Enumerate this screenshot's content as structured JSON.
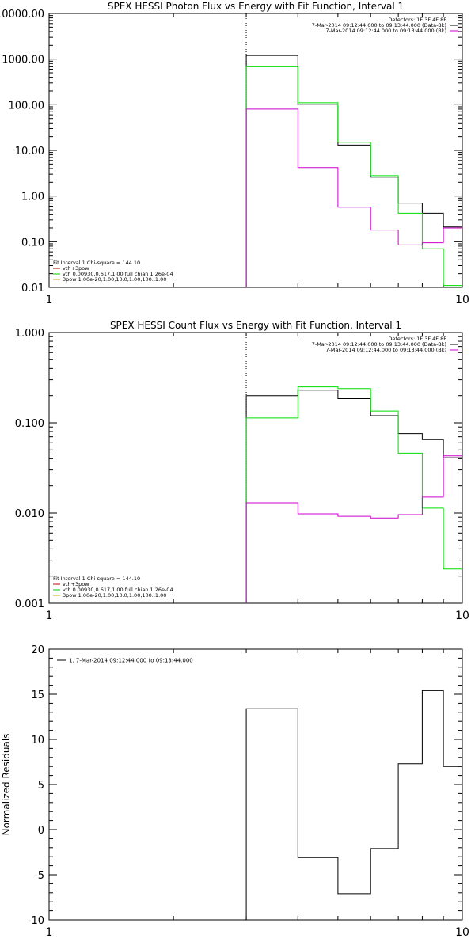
{
  "chart_data": [
    {
      "type": "line",
      "title": "SPEX HESSI Photon Flux vs Energy with Fit Function, Interval 1",
      "xlabel": "",
      "ylabel": "",
      "xscale": "log",
      "yscale": "log",
      "xlim": [
        1,
        10
      ],
      "ylim": [
        0.01,
        10000
      ],
      "x_ticks": [
        "1",
        "10"
      ],
      "y_ticks": [
        "0.01",
        "0.10",
        "1.00",
        "10.00",
        "100.00",
        "1000.00",
        "10000.00"
      ],
      "y_tick_values": [
        0.01,
        0.1,
        1,
        10,
        100,
        1000,
        10000
      ],
      "energy_edges": [
        3,
        4,
        5,
        6,
        7,
        8,
        9,
        10
      ],
      "vline_x": 3,
      "legend_top": [
        "Detectors: 1F 3F 4F 8F",
        "7-Mar-2014 09:12:44.000 to 09:13:44.000 (Data-Bk)",
        "7-Mar-2014 09:12:44.000 to 09:13:44.000 (Bk)"
      ],
      "legend_top_colors": [
        "",
        "#000000",
        "#cc00cc"
      ],
      "legend_bottom": [
        "Fit Interval 1    Chi-square = 144.10",
        "vth+3pow",
        "vth 0.00930,0.617,1.00   full chian 1.26e-04",
        "3pow 1.00e-20,1.00,10.0,1.00,100.,1.00"
      ],
      "legend_bottom_colors": [
        "",
        "#cc0000",
        "#00cc00",
        "#ccaa00"
      ],
      "series": [
        {
          "color": "#000000",
          "values": [
            1200,
            100,
            13,
            2.6,
            0.7,
            0.42,
            0.21
          ]
        },
        {
          "color": "#00dd00",
          "values": [
            700,
            110,
            15,
            2.8,
            0.42,
            0.07,
            0.011
          ]
        },
        {
          "color": "#cc00cc",
          "values": [
            80,
            4.2,
            0.57,
            0.18,
            0.085,
            0.095,
            0.2
          ]
        }
      ]
    },
    {
      "type": "line",
      "title": "SPEX HESSI Count Flux vs Energy with Fit Function, Interval 1",
      "xlabel": "",
      "ylabel": "",
      "xscale": "log",
      "yscale": "log",
      "xlim": [
        1,
        10
      ],
      "ylim": [
        0.001,
        1
      ],
      "x_ticks": [
        "1",
        "10"
      ],
      "y_ticks": [
        "0.001",
        "0.010",
        "0.100",
        "1.000"
      ],
      "y_tick_values": [
        0.001,
        0.01,
        0.1,
        1
      ],
      "energy_edges": [
        3,
        4,
        5,
        6,
        7,
        8,
        9,
        10
      ],
      "vline_x": 3,
      "legend_top": [
        "Detectors: 1F 3F 4F 8F",
        "7-Mar-2014 09:12:44.000 to 09:13:44.000 (Data-Bk)",
        "7-Mar-2014 09:12:44.000 to 09:13:44.000 (Bk)"
      ],
      "legend_top_colors": [
        "",
        "#000000",
        "#cc00cc"
      ],
      "legend_bottom": [
        "Fit Interval 1    Chi-square = 144.10",
        "vth+3pow",
        "vth 0.00930,0.617,1.00   full chian 1.26e-04",
        "3pow 1.00e-20,1.00,10.0,1.00,100.,1.00"
      ],
      "legend_bottom_colors": [
        "",
        "#cc0000",
        "#00cc00",
        "#ccaa00"
      ],
      "series": [
        {
          "color": "#000000",
          "values": [
            0.2,
            0.23,
            0.185,
            0.12,
            0.076,
            0.065,
            0.041
          ]
        },
        {
          "color": "#00dd00",
          "values": [
            0.113,
            0.25,
            0.24,
            0.135,
            0.046,
            0.0113,
            0.0024
          ]
        },
        {
          "color": "#cc00cc",
          "values": [
            0.013,
            0.0098,
            0.0092,
            0.0088,
            0.0096,
            0.015,
            0.043
          ]
        }
      ]
    },
    {
      "type": "line",
      "title": "",
      "xlabel": "",
      "ylabel": "Normalized Residuals",
      "xscale": "log",
      "yscale": "linear",
      "xlim": [
        1,
        10
      ],
      "ylim": [
        -10,
        20
      ],
      "x_ticks": [
        "1",
        "10"
      ],
      "y_ticks": [
        "-10",
        "-5",
        "0",
        "5",
        "10",
        "15",
        "20"
      ],
      "y_tick_values": [
        -10,
        -5,
        0,
        5,
        10,
        15,
        20
      ],
      "energy_edges": [
        3,
        4,
        5,
        6,
        7,
        8,
        9,
        10
      ],
      "legend_top": [
        "1.  7-Mar-2014 09:12:44.000 to 09:13:44.000"
      ],
      "legend_top_colors": [
        "#000000"
      ],
      "series": [
        {
          "color": "#000000",
          "values": [
            13.4,
            -3.1,
            -7.1,
            -2.1,
            7.3,
            15.4,
            7.0
          ]
        }
      ]
    }
  ]
}
